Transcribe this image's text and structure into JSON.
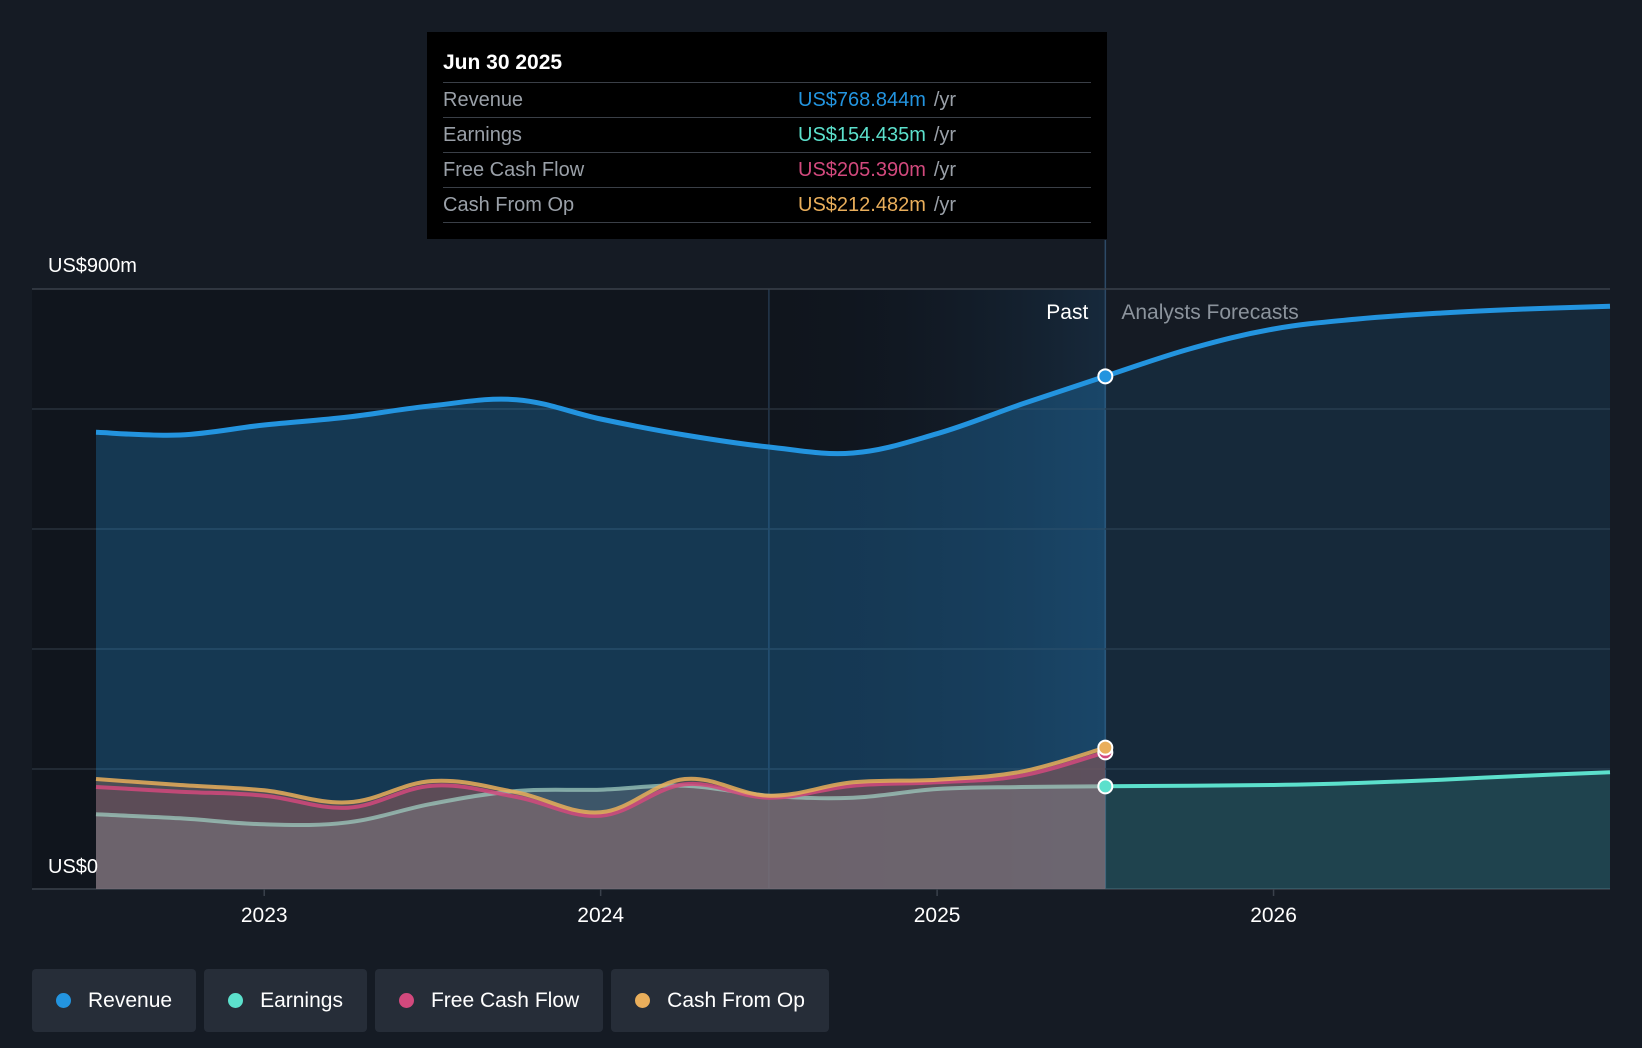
{
  "tooltip": {
    "date": "Jun 30 2025",
    "rows": [
      {
        "label": "Revenue",
        "value": "US$768.844m",
        "unit": "/yr",
        "color": "#2394df"
      },
      {
        "label": "Earnings",
        "value": "US$154.435m",
        "unit": "/yr",
        "color": "#5ce0cc"
      },
      {
        "label": "Free Cash Flow",
        "value": "US$205.390m",
        "unit": "/yr",
        "color": "#d2497d"
      },
      {
        "label": "Cash From Op",
        "value": "US$212.482m",
        "unit": "/yr",
        "color": "#e9ae5b"
      }
    ]
  },
  "legend": [
    {
      "label": "Revenue",
      "color": "#2394df"
    },
    {
      "label": "Earnings",
      "color": "#5ce0cc"
    },
    {
      "label": "Free Cash Flow",
      "color": "#d2497d"
    },
    {
      "label": "Cash From Op",
      "color": "#e9ae5b"
    }
  ],
  "chart_data": {
    "type": "area",
    "y_axis_labels": [
      "US$900m",
      "US$0"
    ],
    "ylim": [
      0,
      900
    ],
    "xlim": [
      2022.5,
      2027.0
    ],
    "x_ticks": [
      2023,
      2024,
      2025,
      2026
    ],
    "x_tick_labels": [
      "2023",
      "2024",
      "2025",
      "2026"
    ],
    "past_label": "Past",
    "forecast_label": "Analysts Forecasts",
    "past_end": 2025.5,
    "highlight_start": 2024.5,
    "series": [
      {
        "name": "Revenue",
        "color": "#2394df",
        "points": [
          [
            2022.5,
            685
          ],
          [
            2022.75,
            681
          ],
          [
            2023.0,
            696
          ],
          [
            2023.25,
            708
          ],
          [
            2023.5,
            725
          ],
          [
            2023.75,
            734
          ],
          [
            2024.0,
            705
          ],
          [
            2024.25,
            681
          ],
          [
            2024.5,
            663
          ],
          [
            2024.75,
            654
          ],
          [
            2025.0,
            683
          ],
          [
            2025.25,
            727
          ],
          [
            2025.5,
            769
          ],
          [
            2025.75,
            810
          ],
          [
            2026.0,
            840
          ],
          [
            2026.25,
            855
          ],
          [
            2026.5,
            864
          ],
          [
            2026.75,
            870
          ],
          [
            2027.0,
            874
          ]
        ]
      },
      {
        "name": "Earnings",
        "color": "#5ce0cc",
        "points": [
          [
            2022.5,
            112
          ],
          [
            2022.75,
            106
          ],
          [
            2023.0,
            97
          ],
          [
            2023.25,
            100
          ],
          [
            2023.5,
            128
          ],
          [
            2023.75,
            147
          ],
          [
            2024.0,
            149
          ],
          [
            2024.25,
            155
          ],
          [
            2024.5,
            140
          ],
          [
            2024.75,
            137
          ],
          [
            2025.0,
            150
          ],
          [
            2025.25,
            153
          ],
          [
            2025.5,
            154
          ],
          [
            2025.75,
            155
          ],
          [
            2026.0,
            156
          ],
          [
            2026.25,
            159
          ],
          [
            2026.5,
            164
          ],
          [
            2026.75,
            170
          ],
          [
            2027.0,
            175
          ]
        ]
      },
      {
        "name": "Free Cash Flow",
        "color": "#d2497d",
        "points": [
          [
            2022.5,
            153
          ],
          [
            2022.75,
            146
          ],
          [
            2023.0,
            140
          ],
          [
            2023.25,
            122
          ],
          [
            2023.5,
            155
          ],
          [
            2023.75,
            138
          ],
          [
            2024.0,
            110
          ],
          [
            2024.25,
            157
          ],
          [
            2024.5,
            137
          ],
          [
            2024.75,
            155
          ],
          [
            2025.0,
            160
          ],
          [
            2025.25,
            170
          ],
          [
            2025.5,
            205
          ]
        ]
      },
      {
        "name": "Cash From Op",
        "color": "#e9ae5b",
        "points": [
          [
            2022.5,
            165
          ],
          [
            2022.75,
            156
          ],
          [
            2023.0,
            148
          ],
          [
            2023.25,
            130
          ],
          [
            2023.5,
            162
          ],
          [
            2023.75,
            145
          ],
          [
            2024.0,
            115
          ],
          [
            2024.25,
            165
          ],
          [
            2024.5,
            140
          ],
          [
            2024.75,
            160
          ],
          [
            2025.0,
            164
          ],
          [
            2025.25,
            176
          ],
          [
            2025.5,
            212
          ]
        ]
      }
    ]
  }
}
